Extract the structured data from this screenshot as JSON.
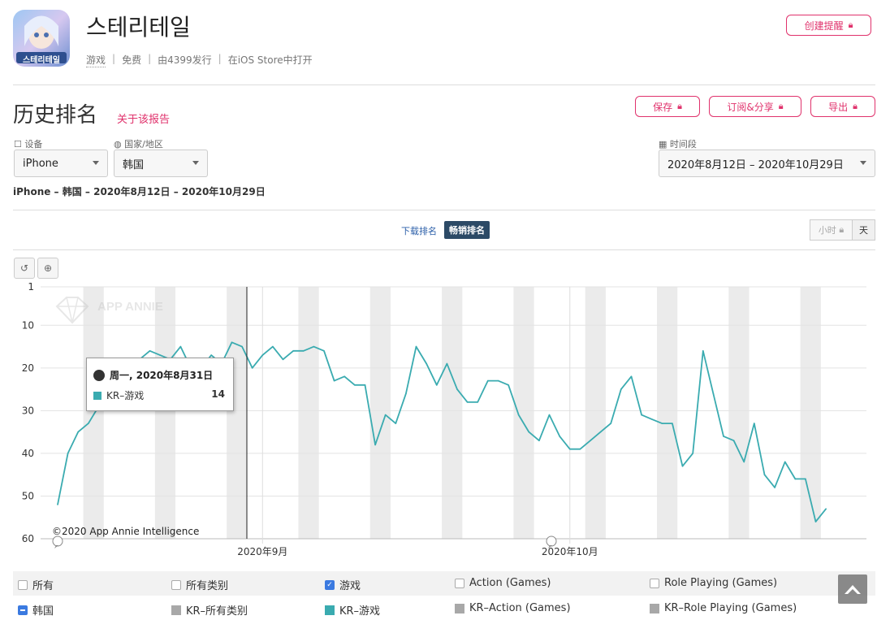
{
  "app": {
    "name": "스테리테일",
    "icon_text": "스테리테일",
    "meta": [
      "游戏",
      "免费",
      "由4399发行",
      "在iOS Store中打开"
    ],
    "alert_button": "创建提醒"
  },
  "page": {
    "title": "历史排名",
    "about_link": "关于该报告",
    "actions": [
      "保存",
      "订阅&分享",
      "导出"
    ]
  },
  "filters": {
    "device_label": "设备",
    "device_value": "iPhone",
    "country_label": "国家/地区",
    "country_value": "韩国",
    "period_label": "时间段",
    "period_value": "2020年8月12日 – 2020年10月29日"
  },
  "summary": "iPhone – 韩国 – 2020年8月12日 – 2020年10月29日",
  "tabs": {
    "downloads": "下载排名",
    "grossing": "畅销排名"
  },
  "granularity": {
    "hour": "小时",
    "day": "天"
  },
  "icons": {
    "reset": "reset-zoom-icon",
    "zoom": "zoom-icon",
    "lock": "lock-icon",
    "calendar": "calendar-icon",
    "globe": "globe-icon"
  },
  "tooltip": {
    "date": "周一, 2020年8月31日",
    "series": "KR–游戏",
    "value": "14"
  },
  "watermark": "APP ANNIE",
  "copyright": "©2020 App Annie Intelligence",
  "legend": {
    "row1": [
      {
        "label": "所有",
        "checked": false
      },
      {
        "label": "所有类别",
        "checked": false
      },
      {
        "label": "游戏",
        "checked": true
      },
      {
        "label": "Action (Games)",
        "checked": false
      },
      {
        "label": "Role Playing (Games)",
        "checked": false
      }
    ],
    "row2": [
      {
        "label": "韩国",
        "color": "#3b7ae0"
      },
      {
        "label": "KR–所有类别",
        "color": "#a8a8a8"
      },
      {
        "label": "KR–游戏",
        "color": "#3aabb0"
      },
      {
        "label": "KR–Action (Games)",
        "color": "#a8a8a8"
      },
      {
        "label": "KR–Role Playing (Games)",
        "color": "#a8a8a8"
      }
    ]
  },
  "colors": {
    "accent": "#e0326c",
    "series": "#3aabb0",
    "weekend": "#ebebeb"
  },
  "chart_data": {
    "type": "line",
    "yaxis_reversed": true,
    "yticks": [
      1,
      10,
      20,
      30,
      40,
      50,
      60
    ],
    "ylim": [
      1,
      60
    ],
    "xticks": [
      {
        "label": "2020年9月",
        "date": "2020-09-01"
      },
      {
        "label": "2020年10月",
        "date": "2020-10-01"
      }
    ],
    "x_start": "2020-08-12",
    "x_end": "2020-10-29",
    "series": [
      {
        "name": "KR–游戏",
        "values": [
          52,
          40,
          35,
          33,
          29,
          24,
          20,
          19,
          18,
          16,
          17,
          18,
          15,
          20,
          20,
          17,
          19,
          14,
          15,
          20,
          17,
          15,
          18,
          16,
          16,
          15,
          16,
          23,
          22,
          24,
          24,
          38,
          31,
          33,
          26,
          15,
          19,
          24,
          19,
          25,
          28,
          28,
          23,
          23,
          24,
          31,
          35,
          37,
          31,
          36,
          39,
          39,
          37,
          35,
          33,
          25,
          22,
          31,
          32,
          33,
          33,
          43,
          40,
          16,
          26,
          36,
          37,
          42,
          33,
          45,
          48,
          42,
          46,
          46,
          56,
          53
        ]
      }
    ]
  }
}
